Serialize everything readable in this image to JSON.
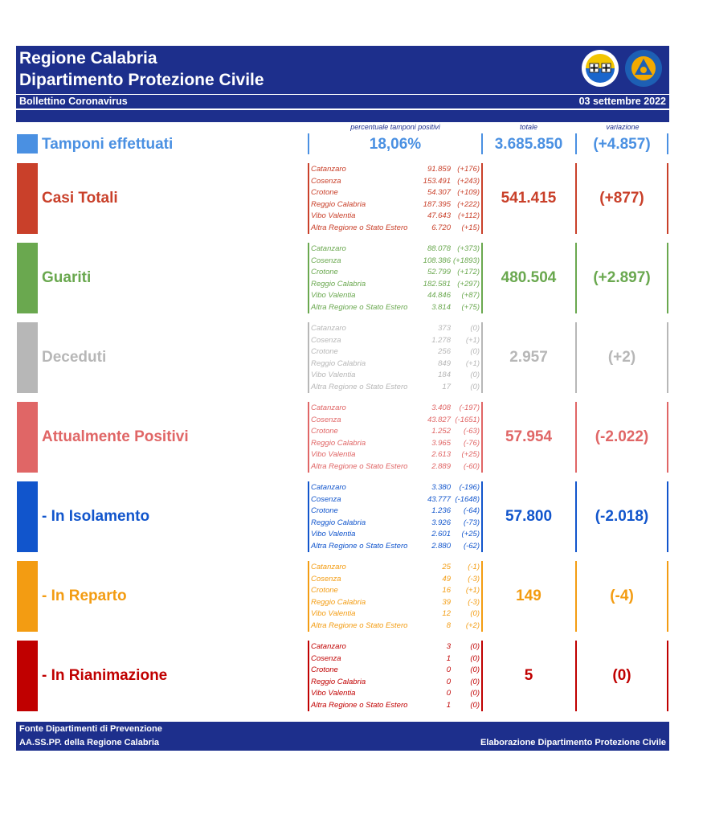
{
  "header": {
    "title_line1": "Regione Calabria",
    "title_line2": "Dipartimento Protezione Civile",
    "bulletin": "Bollettino Coronavirus",
    "date": "03 settembre 2022"
  },
  "columns": {
    "percent_header": "percentuale tamponi positivi",
    "total_header": "totale",
    "variation_header": "variazione"
  },
  "tamponi": {
    "label": "Tamponi effettuati",
    "percent": "18,06%",
    "total": "3.685.850",
    "variation": "(+4.857)",
    "color": "#4a90e2"
  },
  "sections": [
    {
      "label": "Casi Totali",
      "color": "#c9402a",
      "total": "541.415",
      "variation": "(+877)",
      "provinces": [
        {
          "name": "Catanzaro",
          "value": "91.859",
          "delta": "(+176)"
        },
        {
          "name": "Cosenza",
          "value": "153.491",
          "delta": "(+243)"
        },
        {
          "name": "Crotone",
          "value": "54.307",
          "delta": "(+109)"
        },
        {
          "name": "Reggio Calabria",
          "value": "187.395",
          "delta": "(+222)"
        },
        {
          "name": "Vibo Valentia",
          "value": "47.643",
          "delta": "(+112)"
        },
        {
          "name": "Altra Regione o Stato Estero",
          "value": "6.720",
          "delta": "(+15)"
        }
      ]
    },
    {
      "label": "Guariti",
      "color": "#6aa84f",
      "total": "480.504",
      "variation": "(+2.897)",
      "provinces": [
        {
          "name": "Catanzaro",
          "value": "88.078",
          "delta": "(+373)"
        },
        {
          "name": "Cosenza",
          "value": "108.386",
          "delta": "(+1893)"
        },
        {
          "name": "Crotone",
          "value": "52.799",
          "delta": "(+172)"
        },
        {
          "name": "Reggio Calabria",
          "value": "182.581",
          "delta": "(+297)"
        },
        {
          "name": "Vibo Valentia",
          "value": "44.846",
          "delta": "(+87)"
        },
        {
          "name": "Altra Regione o Stato Estero",
          "value": "3.814",
          "delta": "(+75)"
        }
      ]
    },
    {
      "label": "Deceduti",
      "color": "#b7b7b7",
      "total": "2.957",
      "variation": "(+2)",
      "provinces": [
        {
          "name": "Catanzaro",
          "value": "373",
          "delta": "(0)"
        },
        {
          "name": "Cosenza",
          "value": "1.278",
          "delta": "(+1)"
        },
        {
          "name": "Crotone",
          "value": "256",
          "delta": "(0)"
        },
        {
          "name": "Reggio Calabria",
          "value": "849",
          "delta": "(+1)"
        },
        {
          "name": "Vibo Valentia",
          "value": "184",
          "delta": "(0)"
        },
        {
          "name": "Altra Regione o Stato Estero",
          "value": "17",
          "delta": "(0)"
        }
      ]
    },
    {
      "label": "Attualmente Positivi",
      "color": "#e06666",
      "total": "57.954",
      "variation": "(-2.022)",
      "provinces": [
        {
          "name": "Catanzaro",
          "value": "3.408",
          "delta": "(-197)"
        },
        {
          "name": "Cosenza",
          "value": "43.827",
          "delta": "(-1651)"
        },
        {
          "name": "Crotone",
          "value": "1.252",
          "delta": "(-63)"
        },
        {
          "name": "Reggio Calabria",
          "value": "3.965",
          "delta": "(-76)"
        },
        {
          "name": "Vibo Valentia",
          "value": "2.613",
          "delta": "(+25)"
        },
        {
          "name": "Altra Regione o Stato Estero",
          "value": "2.889",
          "delta": "(-60)"
        }
      ]
    },
    {
      "label": " - In Isolamento",
      "color": "#1155cc",
      "total": "57.800",
      "variation": "(-2.018)",
      "provinces": [
        {
          "name": "Catanzaro",
          "value": "3.380",
          "delta": "(-196)"
        },
        {
          "name": "Cosenza",
          "value": "43.777",
          "delta": "(-1648)"
        },
        {
          "name": "Crotone",
          "value": "1.236",
          "delta": "(-64)"
        },
        {
          "name": "Reggio Calabria",
          "value": "3.926",
          "delta": "(-73)"
        },
        {
          "name": "Vibo Valentia",
          "value": "2.601",
          "delta": "(+25)"
        },
        {
          "name": "Altra Regione o Stato Estero",
          "value": "2.880",
          "delta": "(-62)"
        }
      ]
    },
    {
      "label": " - In Reparto",
      "color": "#f39c12",
      "total": "149",
      "variation": "(-4)",
      "provinces": [
        {
          "name": "Catanzaro",
          "value": "25",
          "delta": "(-1)"
        },
        {
          "name": "Cosenza",
          "value": "49",
          "delta": "(-3)"
        },
        {
          "name": "Crotone",
          "value": "16",
          "delta": "(+1)"
        },
        {
          "name": "Reggio Calabria",
          "value": "39",
          "delta": "(-3)"
        },
        {
          "name": "Vibo Valentia",
          "value": "12",
          "delta": "(0)"
        },
        {
          "name": "Altra Regione o Stato Estero",
          "value": "8",
          "delta": "(+2)"
        }
      ]
    },
    {
      "label": " - In Rianimazione",
      "color": "#c00000",
      "total": "5",
      "variation": "(0)",
      "provinces": [
        {
          "name": "Catanzaro",
          "value": "3",
          "delta": "(0)"
        },
        {
          "name": "Cosenza",
          "value": "1",
          "delta": "(0)"
        },
        {
          "name": "Crotone",
          "value": "0",
          "delta": "(0)"
        },
        {
          "name": "Reggio Calabria",
          "value": "0",
          "delta": "(0)"
        },
        {
          "name": "Vibo Valentia",
          "value": "0",
          "delta": "(0)"
        },
        {
          "name": "Altra Regione o Stato Estero",
          "value": "1",
          "delta": "(0)"
        }
      ]
    }
  ],
  "footer": {
    "line1": "Fonte Dipartimenti di Prevenzione",
    "line2": "AA.SS.PP.  della Regione Calabria",
    "credit": "Elaborazione Dipartimento Protezione Civile"
  }
}
